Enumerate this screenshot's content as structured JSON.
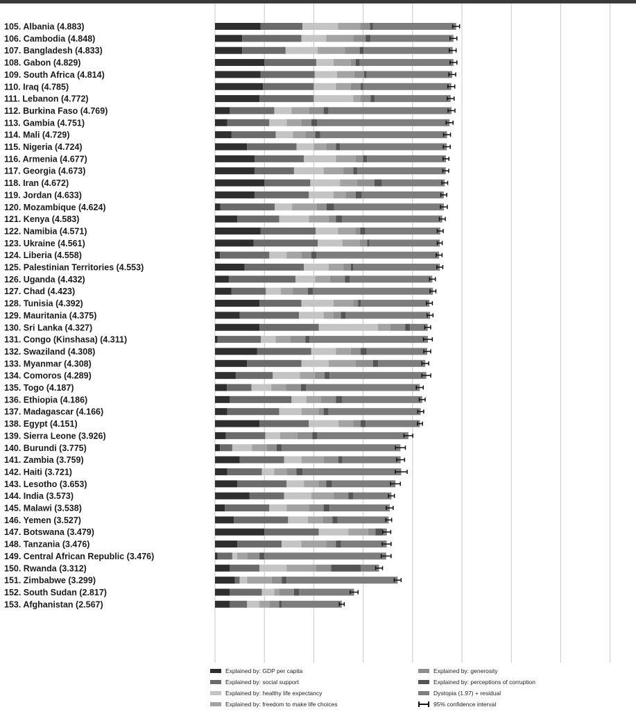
{
  "chart_data": {
    "type": "bar",
    "stacked": true,
    "orientation": "horizontal",
    "xlim": [
      0,
      8
    ],
    "x_ticks": [
      "0",
      "1",
      "2",
      "3",
      "4",
      "5",
      "6",
      "7",
      "8"
    ],
    "grid": true,
    "legend_position": "bottom",
    "categories": [
      "105. Albania (4.883)",
      "106. Cambodia (4.848)",
      "107. Bangladesh (4.833)",
      "108. Gabon (4.829)",
      "109. South Africa (4.814)",
      "110. Iraq (4.785)",
      "111. Lebanon (4.772)",
      "112. Burkina Faso (4.769)",
      "113. Gambia (4.751)",
      "114. Mali (4.729)",
      "115. Nigeria (4.724)",
      "116. Armenia (4.677)",
      "117. Georgia (4.673)",
      "118. Iran (4.672)",
      "119. Jordan (4.633)",
      "120. Mozambique (4.624)",
      "121. Kenya (4.583)",
      "122. Namibia (4.571)",
      "123. Ukraine (4.561)",
      "124. Liberia (4.558)",
      "125. Palestinian Territories (4.553)",
      "126. Uganda (4.432)",
      "127. Chad (4.423)",
      "128. Tunisia (4.392)",
      "129. Mauritania (4.375)",
      "130. Sri Lanka (4.327)",
      "131. Congo (Kinshasa) (4.311)",
      "132. Swaziland (4.308)",
      "133. Myanmar (4.308)",
      "134. Comoros (4.289)",
      "135. Togo (4.187)",
      "136. Ethiopia (4.186)",
      "137. Madagascar (4.166)",
      "138. Egypt (4.151)",
      "139. Sierra Leone (3.926)",
      "140. Burundi (3.775)",
      "141. Zambia (3.759)",
      "142. Haiti (3.721)",
      "143. Lesotho (3.653)",
      "144. India (3.573)",
      "145. Malawi (3.538)",
      "146. Yemen (3.527)",
      "147. Botswana (3.479)",
      "148. Tanzania (3.476)",
      "149. Central African Republic (3.476)",
      "150. Rwanda (3.312)",
      "151. Zimbabwe (3.299)",
      "152. South Sudan (2.817)",
      "153. Afghanistan (2.567)"
    ],
    "series": [
      {
        "name": "Explained by: GDP per capita",
        "color": "#2e2e2e",
        "values": [
          0.92,
          0.55,
          0.55,
          1.0,
          0.92,
          0.97,
          0.9,
          0.3,
          0.25,
          0.33,
          0.65,
          0.8,
          0.8,
          1.0,
          0.8,
          0.11,
          0.45,
          0.92,
          0.78,
          0.1,
          0.6,
          0.28,
          0.33,
          0.9,
          0.5,
          0.9,
          0.05,
          0.85,
          0.65,
          0.42,
          0.24,
          0.3,
          0.25,
          0.9,
          0.22,
          0.1,
          0.5,
          0.25,
          0.45,
          0.7,
          0.2,
          0.38,
          1.0,
          0.45,
          0.05,
          0.3,
          0.4,
          0.3,
          0.3
        ]
      },
      {
        "name": "Explained by: social support",
        "color": "#6b6b6b",
        "values": [
          0.85,
          1.2,
          0.88,
          1.05,
          1.1,
          1.03,
          1.1,
          0.9,
          0.85,
          0.9,
          1.0,
          1.0,
          0.8,
          0.93,
          1.1,
          1.1,
          0.85,
          1.12,
          1.3,
          1.0,
          1.2,
          1.35,
          0.7,
          0.85,
          1.2,
          1.2,
          0.88,
          1.1,
          1.1,
          0.75,
          0.5,
          1.25,
          1.05,
          1.0,
          0.8,
          0.25,
          0.9,
          0.7,
          1.0,
          0.7,
          0.9,
          1.1,
          1.1,
          0.9,
          0.3,
          0.6,
          0.1,
          0.65,
          0.35
        ]
      },
      {
        "name": "Explained by: healthy life expectancy",
        "color": "#c4c4c4",
        "values": [
          0.72,
          0.5,
          0.65,
          0.35,
          0.45,
          0.45,
          0.8,
          0.35,
          0.35,
          0.35,
          0.35,
          0.65,
          0.6,
          0.6,
          0.5,
          0.35,
          0.6,
          0.45,
          0.5,
          0.35,
          0.5,
          0.4,
          0.3,
          0.65,
          0.5,
          1.2,
          0.3,
          0.5,
          0.55,
          0.55,
          0.4,
          0.3,
          0.45,
          0.6,
          0.3,
          0.4,
          0.35,
          0.25,
          0.35,
          0.55,
          0.35,
          0.4,
          0.6,
          0.4,
          0.1,
          0.55,
          0.15,
          0.25,
          0.25
        ]
      },
      {
        "name": "Explained by: freedom to make life choices",
        "color": "#a3a3a3",
        "values": [
          0.45,
          0.55,
          0.55,
          0.35,
          0.35,
          0.3,
          0.15,
          0.35,
          0.3,
          0.25,
          0.25,
          0.4,
          0.4,
          0.35,
          0.25,
          0.5,
          0.4,
          0.35,
          0.35,
          0.3,
          0.3,
          0.3,
          0.25,
          0.4,
          0.2,
          0.25,
          0.3,
          0.3,
          0.55,
          0.3,
          0.3,
          0.3,
          0.35,
          0.3,
          0.35,
          0.3,
          0.45,
          0.25,
          0.3,
          0.45,
          0.45,
          0.3,
          0.4,
          0.5,
          0.2,
          0.6,
          0.5,
          0.1,
          0.2
        ]
      },
      {
        "name": "Explained by: generosity",
        "color": "#8e8e8e",
        "values": [
          0.2,
          0.25,
          0.3,
          0.1,
          0.2,
          0.2,
          0.2,
          0.3,
          0.2,
          0.2,
          0.2,
          0.15,
          0.2,
          0.35,
          0.2,
          0.2,
          0.15,
          0.1,
          0.15,
          0.2,
          0.15,
          0.3,
          0.3,
          0.1,
          0.15,
          0.3,
          0.3,
          0.2,
          0.35,
          0.2,
          0.3,
          0.3,
          0.1,
          0.15,
          0.3,
          0.2,
          0.3,
          0.2,
          0.15,
          0.3,
          0.3,
          0.2,
          0.15,
          0.2,
          0.25,
          0.3,
          0.2,
          0.3,
          0.2
        ]
      },
      {
        "name": "Explained by: perceptions of corruption",
        "color": "#555555",
        "values": [
          0.06,
          0.1,
          0.08,
          0.08,
          0.05,
          0.05,
          0.08,
          0.1,
          0.12,
          0.1,
          0.08,
          0.08,
          0.08,
          0.15,
          0.12,
          0.15,
          0.12,
          0.1,
          0.05,
          0.1,
          0.05,
          0.1,
          0.1,
          0.05,
          0.1,
          0.1,
          0.08,
          0.12,
          0.1,
          0.1,
          0.1,
          0.12,
          0.1,
          0.1,
          0.1,
          0.1,
          0.08,
          0.12,
          0.12,
          0.1,
          0.12,
          0.1,
          0.15,
          0.1,
          0.1,
          0.6,
          0.1,
          0.1,
          0.05
        ]
      },
      {
        "name": "Dystopia (1.97) + residual",
        "color": "#7d7d7d",
        "values": [
          1.683,
          1.678,
          1.803,
          1.899,
          1.734,
          1.785,
          1.542,
          2.489,
          2.681,
          2.569,
          2.164,
          1.597,
          1.793,
          1.272,
          1.663,
          2.224,
          2.033,
          1.521,
          1.421,
          2.488,
          1.753,
          1.672,
          2.433,
          1.392,
          1.705,
          0.357,
          2.401,
          1.228,
          0.958,
          1.959,
          2.307,
          1.626,
          1.866,
          1.101,
          1.846,
          2.405,
          1.179,
          2.001,
          1.283,
          0.773,
          1.218,
          1.037,
          0.079,
          0.926,
          2.466,
          0.372,
          2.249,
          1.117,
          1.217
        ]
      }
    ],
    "confidence_interval_half_width": [
      0.07,
      0.07,
      0.07,
      0.07,
      0.07,
      0.07,
      0.07,
      0.07,
      0.07,
      0.07,
      0.07,
      0.06,
      0.06,
      0.06,
      0.06,
      0.07,
      0.06,
      0.06,
      0.05,
      0.06,
      0.06,
      0.06,
      0.06,
      0.06,
      0.06,
      0.06,
      0.09,
      0.07,
      0.07,
      0.09,
      0.07,
      0.06,
      0.06,
      0.05,
      0.09,
      0.1,
      0.08,
      0.12,
      0.1,
      0.06,
      0.07,
      0.06,
      0.08,
      0.09,
      0.1,
      0.07,
      0.07,
      0.08,
      0.05
    ],
    "legend": {
      "ci_label": "95% confidence interval"
    }
  }
}
